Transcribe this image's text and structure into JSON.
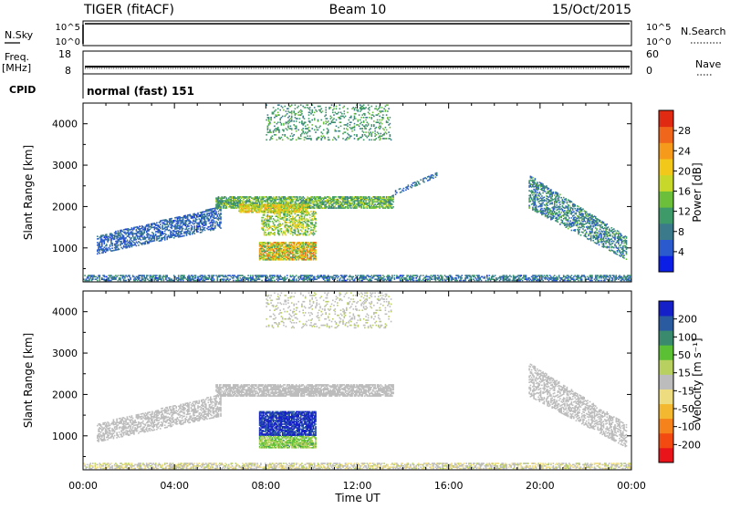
{
  "header": {
    "radar": "TIGER (fitACF)",
    "beam": "Beam 10",
    "date": "15/Oct/2015"
  },
  "nsky_panel": {
    "label": "N.Sky",
    "left_ticks": [
      "10^5",
      "10^0"
    ],
    "right_ticks": [
      "10^5",
      "10^0"
    ],
    "right_label": "N.Search"
  },
  "freq_panel": {
    "label_line1": "Freq.",
    "label_line2": "[MHz]",
    "left_ticks": [
      "18",
      "8"
    ],
    "right_ticks": [
      "60",
      "0"
    ],
    "right_label": "Nave"
  },
  "cpid_panel": {
    "label": "CPID",
    "text": "normal (fast) 151"
  },
  "power_panel": {
    "ylabel": "Slant Range [km]",
    "colorbar_label": "Power [dB]",
    "colorbar_ticks": [
      "28",
      "24",
      "20",
      "16",
      "12",
      "8",
      "4"
    ]
  },
  "velocity_panel": {
    "ylabel": "Slant Range [km]",
    "colorbar_label": "Velocity [m s⁻¹]",
    "colorbar_ticks": [
      "200",
      "100",
      "50",
      "15",
      "-15",
      "-50",
      "-100",
      "-200"
    ]
  },
  "x_axis": {
    "label": "Time UT",
    "ticks": [
      "00:00",
      "04:00",
      "08:00",
      "12:00",
      "16:00",
      "20:00",
      "00:00"
    ]
  },
  "chart_data": [
    {
      "type": "heatmap",
      "name": "power",
      "x_range_hours": [
        0,
        24
      ],
      "y_range_km": [
        180,
        4500
      ],
      "y_ticks": [
        1000,
        2000,
        3000,
        4000
      ],
      "y_tick_labels": [
        "1000",
        "2000",
        "3000",
        "4000"
      ],
      "color_range": [
        0,
        32
      ],
      "palette": [
        "#0a1ee6",
        "#2a5acd",
        "#3a7a8a",
        "#3f9a6a",
        "#6cbf3a",
        "#c8d82a",
        "#f2c81a",
        "#f59a1a",
        "#f0661a",
        "#e02a12"
      ],
      "echo_regions": [
        {
          "t": [
            0.0,
            24.0
          ],
          "r": [
            200,
            330
          ],
          "density": 0.55,
          "value": [
            3,
            12
          ]
        },
        {
          "t": [
            0.6,
            6.0
          ],
          "r_start": [
            880,
            1250
          ],
          "r_end": [
            1500,
            1950
          ],
          "width": 70,
          "density": 0.55,
          "value": [
            3,
            9
          ]
        },
        {
          "t": [
            5.8,
            13.6
          ],
          "r": [
            1950,
            2250
          ],
          "density": 0.75,
          "value": [
            8,
            18
          ]
        },
        {
          "t": [
            6.8,
            9.8
          ],
          "r": [
            1850,
            2050
          ],
          "density": 0.8,
          "value": [
            14,
            24
          ]
        },
        {
          "t": [
            7.8,
            10.2
          ],
          "r": [
            1300,
            1900
          ],
          "density": 0.45,
          "value": [
            10,
            22
          ]
        },
        {
          "t": [
            7.7,
            10.2
          ],
          "r": [
            700,
            1150
          ],
          "density": 0.8,
          "value": [
            10,
            28
          ]
        },
        {
          "t": [
            13.5,
            15.6
          ],
          "r_start": [
            2300,
            2300
          ],
          "r_end": [
            2800,
            2800
          ],
          "width": 110,
          "density": 0.45,
          "value": [
            5,
            10
          ]
        },
        {
          "t": [
            8.0,
            13.5
          ],
          "r": [
            3600,
            4450
          ],
          "density": 0.18,
          "value": [
            8,
            14
          ]
        },
        {
          "t": [
            19.5,
            23.8
          ],
          "r_start": [
            2600,
            2100
          ],
          "r_end": [
            1100,
            850
          ],
          "width": 300,
          "density": 0.5,
          "value": [
            4,
            14
          ]
        }
      ]
    },
    {
      "type": "heatmap",
      "name": "velocity",
      "x_range_hours": [
        0,
        24
      ],
      "y_range_km": [
        180,
        4500
      ],
      "y_ticks": [
        1000,
        2000,
        3000,
        4000
      ],
      "y_tick_labels": [
        "1000",
        "2000",
        "3000",
        "4000"
      ],
      "color_range": [
        -250,
        250
      ],
      "palette": [
        "#e8141a",
        "#f24a10",
        "#f5821a",
        "#f3b830",
        "#eedc80",
        "#bcbcbc",
        "#b8d060",
        "#5cc034",
        "#3a8a6e",
        "#2a5aa0",
        "#1620c8"
      ],
      "echo_regions": [
        {
          "t": [
            0.0,
            24.0
          ],
          "r": [
            200,
            330
          ],
          "density": 0.55,
          "value": [
            -60,
            40
          ]
        },
        {
          "t": [
            0.6,
            6.0
          ],
          "r_start": [
            880,
            1250
          ],
          "r_end": [
            1500,
            1950
          ],
          "width": 70,
          "density": 0.5,
          "value": [
            -20,
            10
          ]
        },
        {
          "t": [
            5.8,
            13.6
          ],
          "r": [
            1950,
            2250
          ],
          "density": 0.75,
          "value": [
            -20,
            20
          ]
        },
        {
          "t": [
            7.7,
            10.2
          ],
          "r": [
            1000,
            1600
          ],
          "density": 0.85,
          "value": [
            180,
            240
          ]
        },
        {
          "t": [
            7.7,
            10.2
          ],
          "r": [
            700,
            1000
          ],
          "density": 0.8,
          "value": [
            30,
            120
          ]
        },
        {
          "t": [
            8.0,
            13.5
          ],
          "r": [
            3600,
            4450
          ],
          "density": 0.15,
          "value": [
            -20,
            40
          ]
        },
        {
          "t": [
            19.5,
            23.8
          ],
          "r_start": [
            2600,
            2100
          ],
          "r_end": [
            1100,
            850
          ],
          "width": 300,
          "density": 0.45,
          "value": [
            -20,
            10
          ]
        }
      ]
    }
  ]
}
